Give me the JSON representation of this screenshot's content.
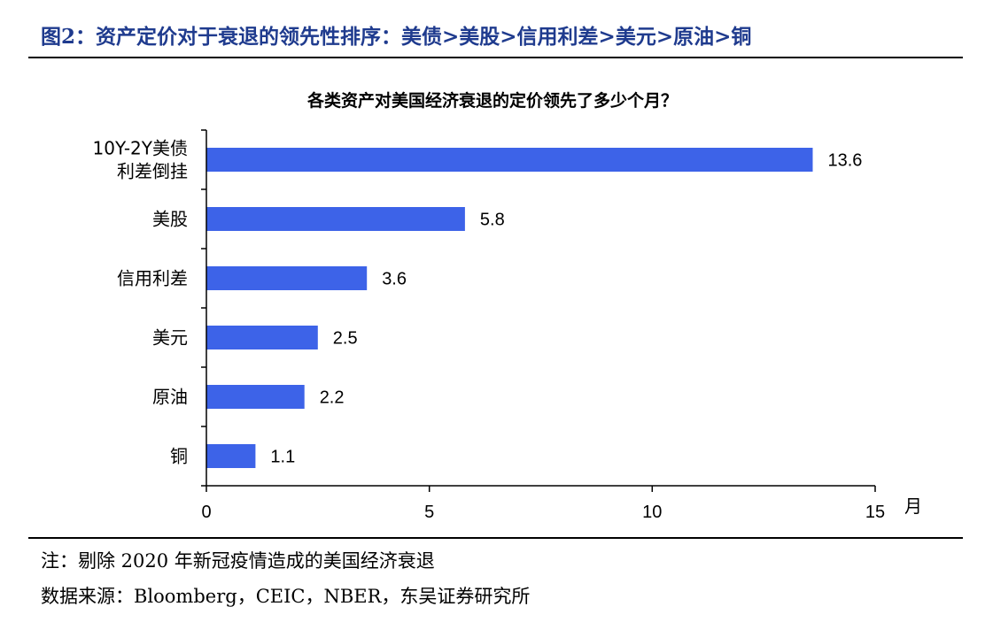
{
  "figure_title": "图2：资产定价对于衰退的领先性排序：美债>美股>信用利差>美元>原油>铜",
  "chart_data": {
    "type": "bar",
    "orientation": "horizontal",
    "title": "各类资产对美国经济衰退的定价领先了多少个月？",
    "categories": [
      [
        "10Y-2Y美债",
        "利差倒挂"
      ],
      [
        "美股"
      ],
      [
        "信用利差"
      ],
      [
        "美元"
      ],
      [
        "原油"
      ],
      [
        "铜"
      ]
    ],
    "values": [
      13.6,
      5.8,
      3.6,
      2.5,
      2.2,
      1.1
    ],
    "value_labels": [
      "13.6",
      "5.8",
      "3.6",
      "2.5",
      "2.2",
      "1.1"
    ],
    "xlim": [
      0,
      15
    ],
    "xticks": [
      0,
      5,
      10,
      15
    ],
    "xtick_labels": [
      "0",
      "5",
      "10",
      "15"
    ],
    "xunit": "月",
    "bar_color": "#3d63e8",
    "grid": false,
    "legend": "none"
  },
  "note": "注：剔除 2020 年新冠疫情造成的美国经济衰退",
  "source": "数据来源：Bloomberg，CEIC，NBER，东吴证券研究所"
}
